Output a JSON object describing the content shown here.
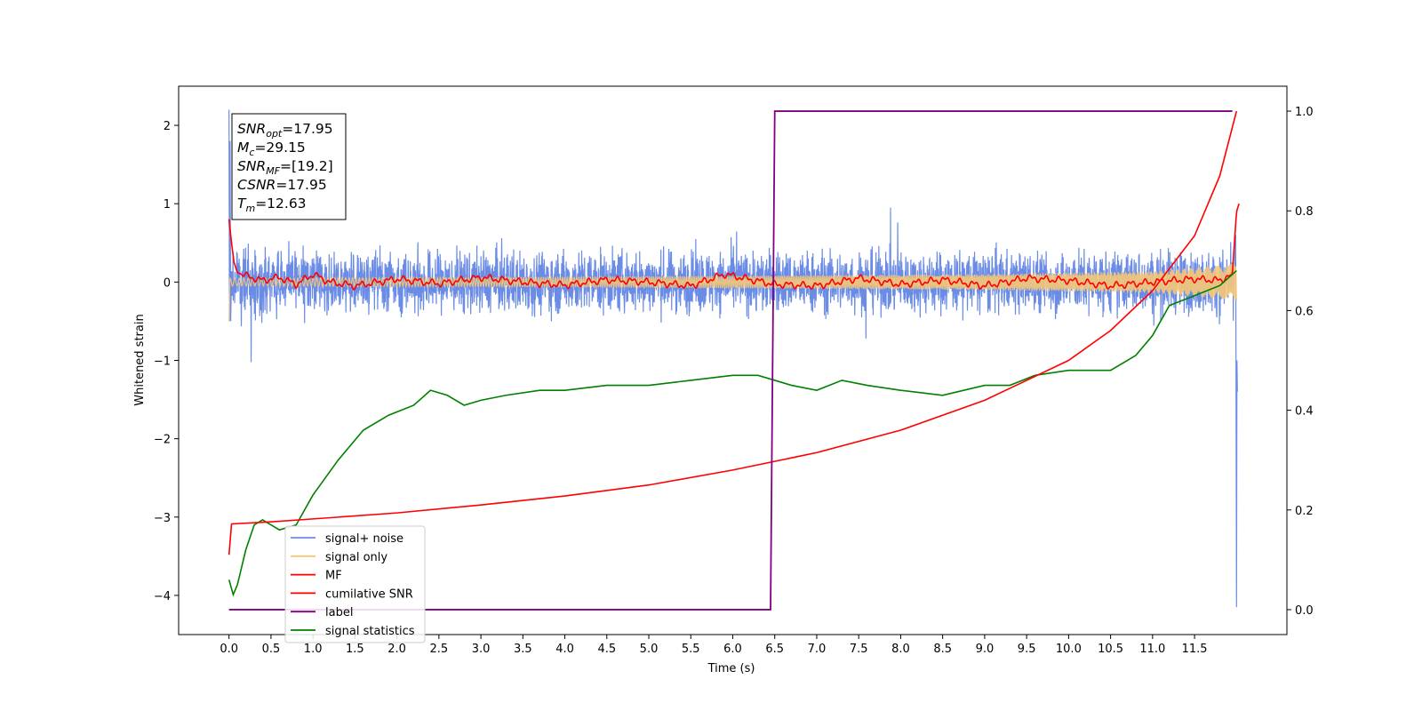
{
  "chart_data": {
    "type": "line",
    "xlabel": "Time (s)",
    "ylabel": "Whitened strain",
    "ylabel_right": "",
    "xlim": [
      -0.6,
      12.6
    ],
    "ylim": [
      -4.5,
      2.5
    ],
    "ylim_right": [
      -0.05,
      1.05
    ],
    "x_ticks": [
      "0.0",
      "0.5",
      "1.0",
      "1.5",
      "2.0",
      "2.5",
      "3.0",
      "3.5",
      "4.0",
      "4.5",
      "5.0",
      "5.5",
      "6.0",
      "6.5",
      "7.0",
      "7.5",
      "8.0",
      "8.5",
      "9.0",
      "9.5",
      "10.0",
      "10.5",
      "11.0",
      "11.5"
    ],
    "y_ticks": [
      "2",
      "1",
      "0",
      "−1",
      "−2",
      "−3",
      "−4"
    ],
    "y_ticks_right": [
      "1.0",
      "0.8",
      "0.6",
      "0.4",
      "0.2",
      "0.0"
    ],
    "grid": false,
    "legend_placement": "lower-left",
    "stats_box": [
      {
        "base": "SNR",
        "sub": "opt",
        "value": "=17.95"
      },
      {
        "base": "M",
        "sub": "c",
        "value": "=29.15"
      },
      {
        "base": "SNR",
        "sub": "MF",
        "value": "=[19.2]"
      },
      {
        "base": "CSNR",
        "sub": "",
        "value": "=17.95"
      },
      {
        "base": "T",
        "sub": "m",
        "value": "=12.63"
      }
    ],
    "series": [
      {
        "name": "signal+ noise",
        "color": "#6a8ce6",
        "axis": "left",
        "description_level": "noise band between about -0.7 and 0.7 with spikes",
        "x": [
          0.0,
          0.02,
          0.05,
          11.98,
          12.0,
          12.01
        ],
        "y": [
          2.2,
          -0.5,
          0.4,
          0.5,
          -4.15,
          -1.4
        ]
      },
      {
        "name": "signal only",
        "color": "#f5c878",
        "axis": "left",
        "x": [
          0.0,
          3.0,
          6.0,
          9.0,
          11.0,
          11.9,
          12.0
        ],
        "amplitude": [
          0.05,
          0.06,
          0.08,
          0.1,
          0.14,
          0.22,
          0.25
        ]
      },
      {
        "name": "MF",
        "color": "#ff0000",
        "axis": "left",
        "x": [
          0.0,
          0.03,
          0.06,
          0.1,
          0.2,
          0.4,
          0.6,
          0.8,
          1.0,
          1.2,
          1.5,
          2.0,
          2.5,
          3.0,
          3.5,
          4.0,
          4.5,
          5.0,
          5.5,
          5.9,
          6.5,
          7.0,
          7.5,
          8.0,
          8.5,
          9.0,
          9.5,
          10.0,
          10.5,
          11.0,
          11.5,
          11.8,
          11.95,
          12.0,
          12.03
        ],
        "y": [
          0.8,
          0.5,
          0.25,
          0.12,
          0.08,
          0.02,
          0.06,
          -0.03,
          0.1,
          0.0,
          -0.05,
          0.04,
          -0.02,
          0.06,
          0.0,
          -0.04,
          0.03,
          0.0,
          -0.05,
          0.1,
          -0.03,
          -0.05,
          0.05,
          -0.03,
          0.03,
          -0.05,
          0.05,
          0.02,
          -0.05,
          0.0,
          0.04,
          0.02,
          0.1,
          0.9,
          1.0
        ]
      },
      {
        "name": "cumilative SNR",
        "color": "#ff0000",
        "axis": "right",
        "x": [
          0.0,
          0.03,
          0.5,
          1.0,
          2.0,
          3.0,
          4.0,
          5.0,
          6.0,
          7.0,
          8.0,
          9.0,
          10.0,
          10.5,
          11.0,
          11.5,
          11.8,
          12.0
        ],
        "y": [
          0.11,
          0.172,
          0.176,
          0.182,
          0.194,
          0.21,
          0.228,
          0.25,
          0.28,
          0.315,
          0.36,
          0.42,
          0.5,
          0.56,
          0.64,
          0.75,
          0.87,
          1.0
        ]
      },
      {
        "name": "label",
        "color": "#800080",
        "axis": "right",
        "x": [
          0.0,
          6.45,
          6.5,
          11.95
        ],
        "y": [
          0.0,
          0.0,
          1.0,
          1.0
        ]
      },
      {
        "name": "signal statistics",
        "color": "#008000",
        "axis": "right",
        "x": [
          0.0,
          0.05,
          0.1,
          0.2,
          0.3,
          0.4,
          0.5,
          0.6,
          0.8,
          1.0,
          1.3,
          1.6,
          1.9,
          2.2,
          2.4,
          2.6,
          2.8,
          3.0,
          3.3,
          3.7,
          4.0,
          4.5,
          5.0,
          5.5,
          6.0,
          6.3,
          6.7,
          7.0,
          7.3,
          7.6,
          8.0,
          8.5,
          9.0,
          9.3,
          9.6,
          10.0,
          10.2,
          10.5,
          10.8,
          11.0,
          11.2,
          11.5,
          11.8,
          12.0
        ],
        "y": [
          0.06,
          0.03,
          0.05,
          0.12,
          0.17,
          0.18,
          0.17,
          0.16,
          0.17,
          0.23,
          0.3,
          0.36,
          0.39,
          0.41,
          0.44,
          0.43,
          0.41,
          0.42,
          0.43,
          0.44,
          0.44,
          0.45,
          0.45,
          0.46,
          0.47,
          0.47,
          0.45,
          0.44,
          0.46,
          0.45,
          0.44,
          0.43,
          0.45,
          0.45,
          0.47,
          0.48,
          0.48,
          0.48,
          0.51,
          0.55,
          0.61,
          0.63,
          0.65,
          0.68
        ]
      }
    ]
  }
}
